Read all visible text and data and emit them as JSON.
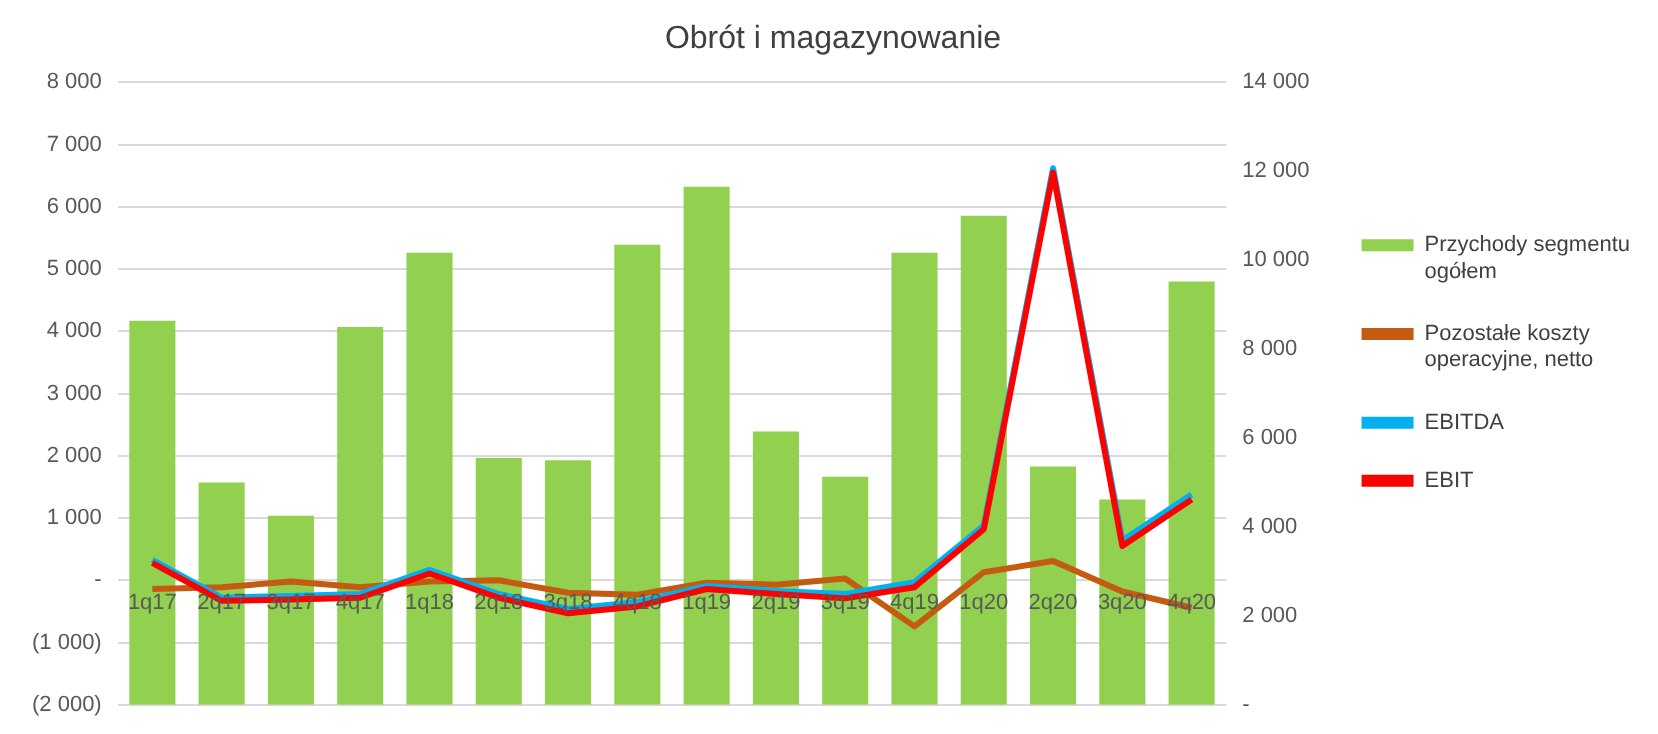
{
  "chart_data": {
    "type": "bar",
    "title": "Obrót i magazynowanie",
    "categories": [
      "1q17",
      "2q17",
      "3q17",
      "4q17",
      "1q18",
      "2q18",
      "3q18",
      "4q18",
      "1q19",
      "2q19",
      "3q19",
      "4q19",
      "1q20",
      "2q20",
      "3q20",
      "4q20"
    ],
    "series": [
      {
        "name": "Przychody segmentu ogółem",
        "axis": "y2",
        "color": "#92d050",
        "values": [
          8640,
          5000,
          4250,
          8500,
          10170,
          5550,
          5500,
          10350,
          11650,
          6150,
          5130,
          10170,
          11000,
          5360,
          4620,
          9520
        ]
      },
      {
        "name": "Pozostałe koszty operacyjne, netto",
        "type": "line",
        "color": "#c55a11",
        "values": [
          -140,
          -110,
          -20,
          -110,
          -20,
          0,
          -200,
          -230,
          -40,
          -70,
          30,
          -740,
          130,
          310,
          -180,
          -440
        ]
      },
      {
        "name": "EBITDA",
        "type": "line",
        "color": "#00b0f0",
        "values": [
          330,
          -280,
          -250,
          -220,
          170,
          -220,
          -460,
          -350,
          -90,
          -170,
          -220,
          -30,
          880,
          6620,
          640,
          1380
        ]
      },
      {
        "name": "EBIT",
        "type": "line",
        "color": "#ff0000",
        "values": [
          280,
          -330,
          -310,
          -280,
          110,
          -280,
          -530,
          -420,
          -140,
          -220,
          -290,
          -110,
          820,
          6550,
          550,
          1300
        ]
      }
    ],
    "ylim": [
      -2000,
      8000
    ],
    "yticks": [
      {
        "value": -2000,
        "label": "(2 000)"
      },
      {
        "value": -1000,
        "label": "(1 000)"
      },
      {
        "value": 0,
        "label": "-"
      },
      {
        "value": 1000,
        "label": "1 000"
      },
      {
        "value": 2000,
        "label": "2 000"
      },
      {
        "value": 3000,
        "label": "3 000"
      },
      {
        "value": 4000,
        "label": "4 000"
      },
      {
        "value": 5000,
        "label": "5 000"
      },
      {
        "value": 6000,
        "label": "6 000"
      },
      {
        "value": 7000,
        "label": "7 000"
      },
      {
        "value": 8000,
        "label": "8 000"
      }
    ],
    "y2lim": [
      0,
      14000
    ],
    "y2ticks": [
      {
        "value": 0,
        "label": "-"
      },
      {
        "value": 2000,
        "label": "2 000"
      },
      {
        "value": 4000,
        "label": "4 000"
      },
      {
        "value": 6000,
        "label": "6 000"
      },
      {
        "value": 8000,
        "label": "8 000"
      },
      {
        "value": 10000,
        "label": "10 000"
      },
      {
        "value": 12000,
        "label": "12 000"
      },
      {
        "value": 14000,
        "label": "14 000"
      }
    ],
    "grid": "y",
    "legend": "right",
    "marker": "none",
    "line_style": "solid"
  }
}
